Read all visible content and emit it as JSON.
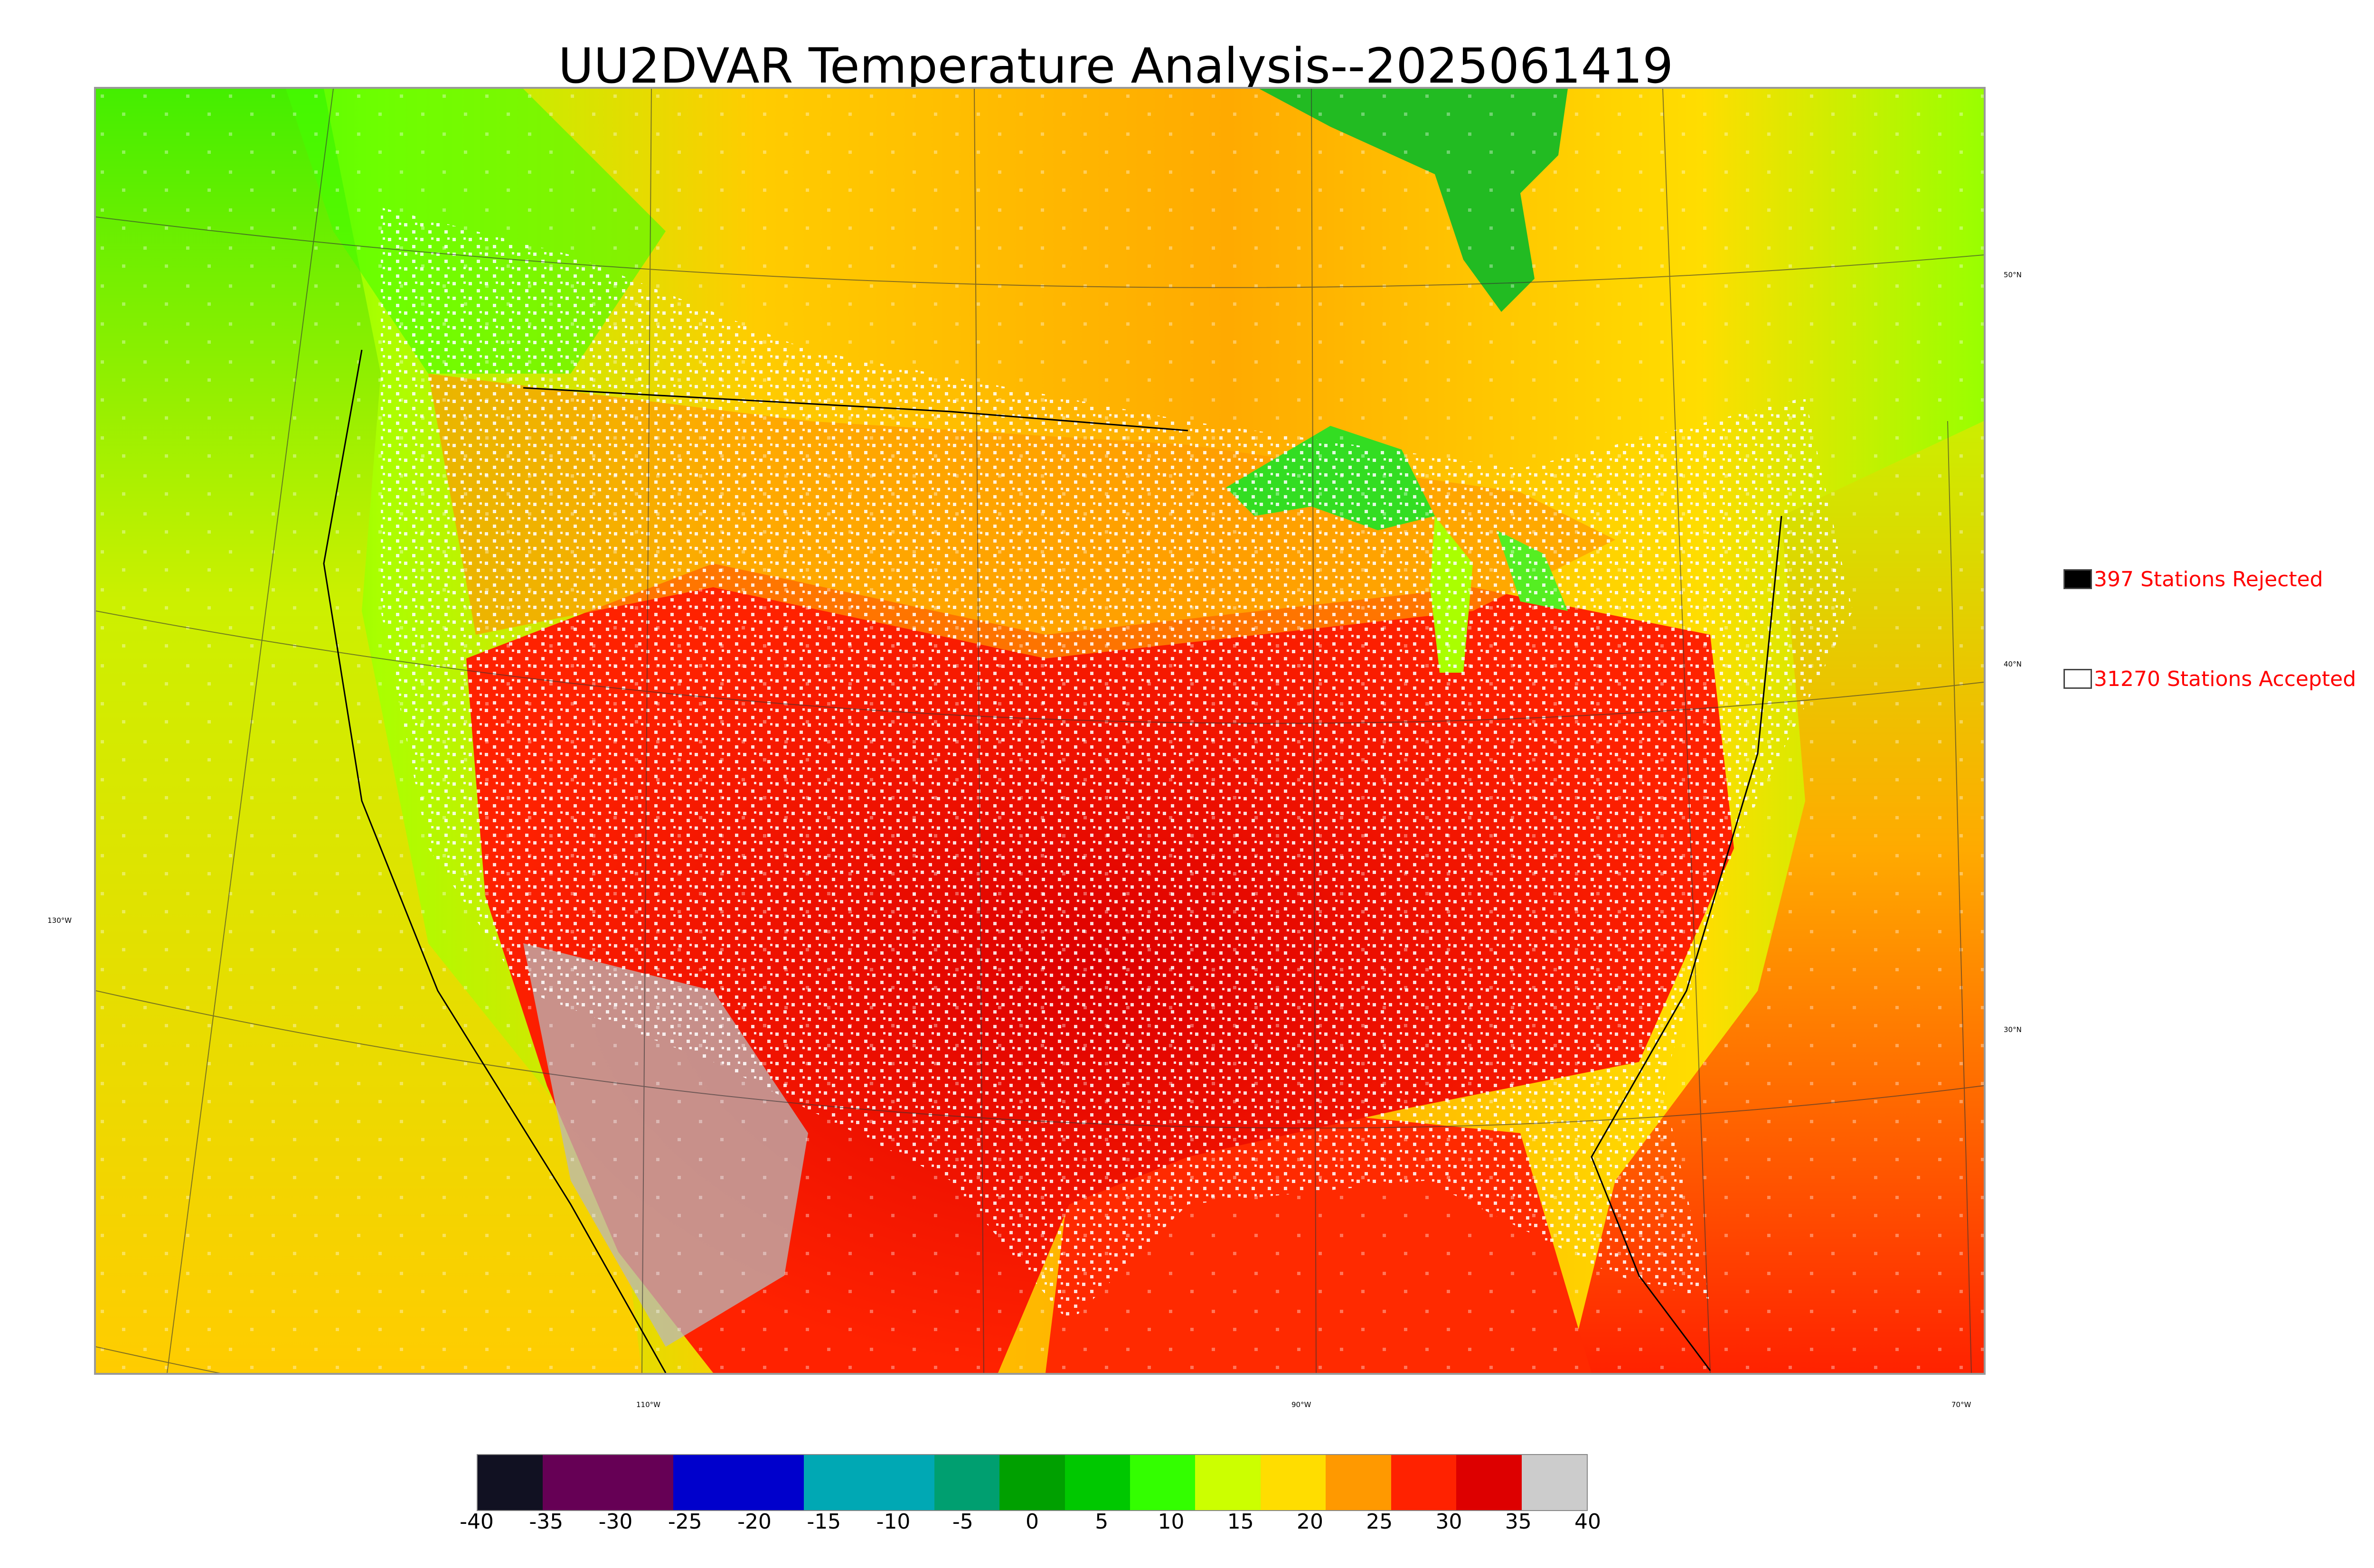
{
  "title": "UU2DVAR Temperature Analysis--2025061419",
  "graticule_labels": {
    "lat": [
      "50°N",
      "40°N",
      "30°N"
    ],
    "lon": [
      "130°W",
      "110°W",
      "90°W",
      "70°W"
    ]
  },
  "legend": {
    "rejected": {
      "label": "397 Stations Rejected",
      "swatch_color": "#000000",
      "text_color": "#ff0000"
    },
    "accepted": {
      "label": "31270 Stations Accepted",
      "swatch_color": "#ffffff",
      "text_color": "#ff0000"
    }
  },
  "colorbar": {
    "ticks": [
      "-40",
      "-35",
      "-30",
      "-25",
      "-20",
      "-15",
      "-10",
      "-5",
      "0",
      "5",
      "10",
      "15",
      "20",
      "25",
      "30",
      "35",
      "40"
    ],
    "range": [
      -40,
      40
    ],
    "colors": [
      "#111122",
      "#660055",
      "#660055",
      "#0000cc",
      "#0000cc",
      "#00a8b4",
      "#00a8b4",
      "#009f70",
      "#00a000",
      "#00c800",
      "#33ff00",
      "#ccff00",
      "#ffdd00",
      "#ff9900",
      "#ff2200",
      "#dd0000",
      "#cccccc"
    ]
  }
}
